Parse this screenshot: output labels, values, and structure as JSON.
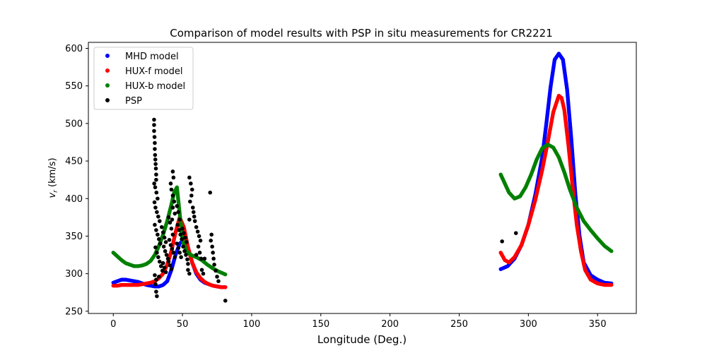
{
  "chart_data": {
    "type": "scatter",
    "title": "Comparison of model results with PSP in situ measurements for CR2221",
    "xlabel": "Longitude (Deg.)",
    "ylabel": "v_r (km/s)",
    "ylabel_main": "v",
    "ylabel_sub": "r",
    "ylabel_unit": " (km/s)",
    "xlim": [
      -18,
      378
    ],
    "ylim": [
      247,
      608
    ],
    "xticks": [
      0,
      50,
      100,
      150,
      200,
      250,
      300,
      350
    ],
    "yticks": [
      250,
      300,
      350,
      400,
      450,
      500,
      550,
      600
    ],
    "grid": false,
    "legend_position": "top-left",
    "series": [
      {
        "name": "MHD model",
        "color": "#0000ff",
        "segments": [
          {
            "x": [
              0,
              3,
              6,
              9,
              12,
              15,
              18,
              21,
              24,
              27,
              30,
              33,
              36,
              39,
              42,
              45,
              48,
              51,
              54,
              57,
              60,
              63,
              66,
              69,
              72,
              75,
              78,
              81
            ],
            "y": [
              288,
              290,
              292,
              292,
              291,
              290,
              289,
              287,
              285,
              284,
              283,
              283,
              285,
              290,
              305,
              325,
              340,
              345,
              335,
              315,
              300,
              292,
              288,
              286,
              284,
              283,
              282,
              282
            ]
          },
          {
            "x": [
              280,
              285,
              290,
              295,
              300,
              305,
              310,
              313,
              316,
              319,
              322,
              325,
              328,
              331,
              334,
              337,
              340,
              345,
              350,
              355,
              360
            ],
            "y": [
              306,
              310,
              320,
              338,
              365,
              405,
              455,
              500,
              548,
              585,
              593,
              585,
              545,
              480,
              405,
              350,
              315,
              298,
              292,
              288,
              287
            ]
          }
        ]
      },
      {
        "name": "HUX-f model",
        "color": "#ff0000",
        "segments": [
          {
            "x": [
              0,
              3,
              6,
              9,
              12,
              15,
              18,
              21,
              24,
              27,
              30,
              33,
              36,
              39,
              42,
              45,
              48,
              51,
              54,
              57,
              60,
              63,
              66,
              69,
              72,
              75,
              78,
              81
            ],
            "y": [
              284,
              284,
              285,
              285,
              285,
              285,
              285,
              286,
              287,
              288,
              290,
              294,
              300,
              312,
              330,
              355,
              375,
              362,
              335,
              315,
              302,
              294,
              289,
              286,
              284,
              283,
              282,
              282
            ]
          },
          {
            "x": [
              280,
              283,
              286,
              290,
              295,
              300,
              305,
              310,
              314,
              318,
              322,
              324,
              326,
              329,
              332,
              335,
              338,
              341,
              345,
              350,
              355,
              360
            ],
            "y": [
              328,
              318,
              315,
              322,
              338,
              365,
              398,
              438,
              475,
              515,
              537,
              534,
              518,
              470,
              415,
              365,
              330,
              305,
              292,
              287,
              285,
              285
            ]
          }
        ]
      },
      {
        "name": "HUX-b model",
        "color": "#008000",
        "segments": [
          {
            "x": [
              0,
              3,
              6,
              9,
              12,
              15,
              18,
              21,
              24,
              27,
              30,
              33,
              36,
              39,
              42,
              44,
              46,
              48,
              50,
              53,
              56,
              60,
              64,
              68,
              72,
              76,
              81
            ],
            "y": [
              328,
              323,
              318,
              314,
              312,
              310,
              310,
              311,
              313,
              317,
              325,
              337,
              352,
              370,
              392,
              408,
              415,
              380,
              345,
              330,
              325,
              322,
              318,
              312,
              307,
              303,
              299
            ]
          },
          {
            "x": [
              280,
              283,
              286,
              290,
              294,
              298,
              302,
              306,
              310,
              314,
              318,
              322,
              326,
              330,
              335,
              340,
              345,
              350,
              355,
              360
            ],
            "y": [
              432,
              420,
              408,
              400,
              403,
              415,
              432,
              452,
              467,
              472,
              468,
              455,
              435,
              412,
              388,
              370,
              358,
              347,
              337,
              330
            ]
          }
        ]
      },
      {
        "name": "PSP",
        "color": "#000000",
        "points": [
          [
            29.5,
            505
          ],
          [
            29.5,
            498
          ],
          [
            29.5,
            490
          ],
          [
            29.8,
            482
          ],
          [
            30,
            474
          ],
          [
            30,
            466
          ],
          [
            30.2,
            458
          ],
          [
            30.4,
            452
          ],
          [
            30.6,
            446
          ],
          [
            30.8,
            440
          ],
          [
            31,
            432
          ],
          [
            31,
            425
          ],
          [
            29.6,
            420
          ],
          [
            30.3,
            415
          ],
          [
            31.2,
            408
          ],
          [
            32,
            400
          ],
          [
            29.8,
            395
          ],
          [
            30.5,
            388
          ],
          [
            31.5,
            382
          ],
          [
            32.5,
            376
          ],
          [
            33.5,
            370
          ],
          [
            30,
            365
          ],
          [
            31,
            358
          ],
          [
            32,
            352
          ],
          [
            33,
            346
          ],
          [
            34,
            340
          ],
          [
            30.5,
            335
          ],
          [
            31.5,
            328
          ],
          [
            32.5,
            322
          ],
          [
            33.5,
            316
          ],
          [
            34.5,
            310
          ],
          [
            35.5,
            304
          ],
          [
            30,
            298
          ],
          [
            31,
            292
          ],
          [
            30.5,
            286
          ],
          [
            31,
            276
          ],
          [
            31.5,
            270
          ],
          [
            35,
            362
          ],
          [
            36,
            355
          ],
          [
            37,
            348
          ],
          [
            38,
            342
          ],
          [
            36.5,
            336
          ],
          [
            37.5,
            330
          ],
          [
            38.5,
            325
          ],
          [
            39.5,
            320
          ],
          [
            36,
            314
          ],
          [
            37,
            308
          ],
          [
            38,
            302
          ],
          [
            33,
            296
          ],
          [
            40,
            375
          ],
          [
            41,
            368
          ],
          [
            42,
            360
          ],
          [
            43,
            352
          ],
          [
            40.5,
            345
          ],
          [
            41.5,
            338
          ],
          [
            42.5,
            333
          ],
          [
            43.5,
            328
          ],
          [
            44.5,
            322
          ],
          [
            40,
            316
          ],
          [
            41,
            311
          ],
          [
            42,
            306
          ],
          [
            42,
            412
          ],
          [
            43,
            404
          ],
          [
            44,
            396
          ],
          [
            43,
            388
          ],
          [
            44.5,
            380
          ],
          [
            42.5,
            372
          ],
          [
            43,
            436
          ],
          [
            43.5,
            428
          ],
          [
            41.5,
            420
          ],
          [
            46,
            390
          ],
          [
            47,
            382
          ],
          [
            48,
            372
          ],
          [
            46.5,
            365
          ],
          [
            47.5,
            358
          ],
          [
            48.5,
            352
          ],
          [
            49.5,
            346
          ],
          [
            46,
            340
          ],
          [
            47,
            334
          ],
          [
            48,
            328
          ],
          [
            49,
            322
          ],
          [
            50,
            360
          ],
          [
            51,
            354
          ],
          [
            52,
            348
          ],
          [
            53,
            342
          ],
          [
            50.5,
            336
          ],
          [
            51.5,
            330
          ],
          [
            52.5,
            325
          ],
          [
            53.5,
            319
          ],
          [
            54,
            313
          ],
          [
            55,
            372
          ],
          [
            55,
            428
          ],
          [
            56,
            420
          ],
          [
            57,
            412
          ],
          [
            56.5,
            404
          ],
          [
            55.5,
            396
          ],
          [
            57.5,
            388
          ],
          [
            55,
            300
          ],
          [
            54,
            305
          ],
          [
            58,
            382
          ],
          [
            58.5,
            376
          ],
          [
            59,
            370
          ],
          [
            60,
            362
          ],
          [
            61,
            356
          ],
          [
            62,
            350
          ],
          [
            63,
            344
          ],
          [
            61.5,
            336
          ],
          [
            62.5,
            328
          ],
          [
            63.5,
            320
          ],
          [
            60,
            325
          ],
          [
            64,
            305
          ],
          [
            65,
            300
          ],
          [
            66,
            320
          ],
          [
            70,
            408
          ],
          [
            71,
            352
          ],
          [
            70.5,
            344
          ],
          [
            71.5,
            336
          ],
          [
            72,
            328
          ],
          [
            72.5,
            320
          ],
          [
            73,
            312
          ],
          [
            74,
            304
          ],
          [
            75,
            296
          ],
          [
            76,
            290
          ],
          [
            81,
            264
          ],
          [
            281,
            343
          ],
          [
            291,
            354
          ]
        ]
      }
    ]
  }
}
